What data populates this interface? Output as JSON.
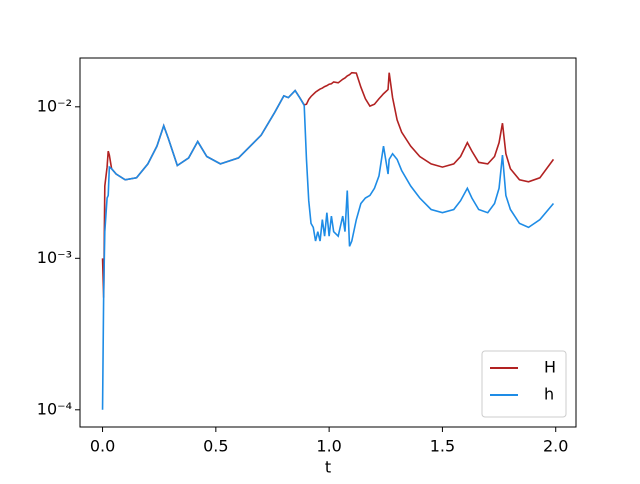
{
  "chart_data": {
    "type": "line",
    "xlabel": "t",
    "x": [
      0,
      0.005,
      0.01,
      0.02,
      0.025,
      0.03,
      0.04,
      0.06,
      0.1,
      0.15,
      0.2,
      0.24,
      0.27,
      0.29,
      0.33,
      0.38,
      0.42,
      0.46,
      0.52,
      0.6,
      0.7,
      0.76,
      0.8,
      0.82,
      0.85,
      0.87,
      0.89,
      0.9,
      0.91,
      0.92,
      0.93,
      0.94,
      0.95,
      0.96,
      0.97,
      0.98,
      0.99,
      1.0,
      1.01,
      1.02,
      1.04,
      1.06,
      1.07,
      1.08,
      1.09,
      1.1,
      1.12,
      1.14,
      1.16,
      1.18,
      1.2,
      1.22,
      1.24,
      1.26,
      1.265,
      1.28,
      1.3,
      1.32,
      1.36,
      1.4,
      1.45,
      1.5,
      1.55,
      1.58,
      1.61,
      1.63,
      1.66,
      1.7,
      1.73,
      1.75,
      1.765,
      1.78,
      1.8,
      1.84,
      1.88,
      1.93,
      1.99
    ],
    "series": [
      {
        "name": "H",
        "color": "#b22222",
        "values": [
          0.001,
          0.00055,
          0.003,
          0.004,
          0.0051,
          0.0048,
          0.0039,
          0.0036,
          0.0033,
          0.0034,
          0.0042,
          0.0055,
          0.0075,
          0.0062,
          0.0041,
          0.0046,
          0.0059,
          0.0047,
          0.0042,
          0.0046,
          0.0065,
          0.0092,
          0.0118,
          0.0115,
          0.0128,
          0.0115,
          0.0103,
          0.0104,
          0.0112,
          0.0117,
          0.0121,
          0.0125,
          0.0128,
          0.0131,
          0.0133,
          0.0136,
          0.0138,
          0.0141,
          0.0142,
          0.0146,
          0.0144,
          0.0152,
          0.0155,
          0.016,
          0.0163,
          0.0168,
          0.0167,
          0.0135,
          0.0113,
          0.0101,
          0.0104,
          0.0113,
          0.0122,
          0.013,
          0.0168,
          0.0115,
          0.0082,
          0.0068,
          0.0055,
          0.0047,
          0.0042,
          0.004,
          0.0042,
          0.0047,
          0.0058,
          0.0051,
          0.0043,
          0.0042,
          0.0047,
          0.0058,
          0.0078,
          0.0049,
          0.0039,
          0.0033,
          0.0032,
          0.0034,
          0.0045
        ]
      },
      {
        "name": "h",
        "color": "#1e8ce6",
        "values": [
          0.0001,
          0.0006,
          0.0015,
          0.0025,
          0.0026,
          0.004,
          0.0039,
          0.0036,
          0.0033,
          0.0034,
          0.0042,
          0.0055,
          0.0075,
          0.0062,
          0.0041,
          0.0046,
          0.0059,
          0.0047,
          0.0042,
          0.0046,
          0.0065,
          0.0092,
          0.0118,
          0.0115,
          0.0128,
          0.0115,
          0.0102,
          0.0045,
          0.0024,
          0.0017,
          0.0016,
          0.0013,
          0.0015,
          0.0013,
          0.0018,
          0.0014,
          0.002,
          0.0014,
          0.0019,
          0.0015,
          0.0014,
          0.0019,
          0.0015,
          0.0028,
          0.0012,
          0.0013,
          0.0018,
          0.0023,
          0.0025,
          0.0026,
          0.0029,
          0.0035,
          0.0055,
          0.0036,
          0.0045,
          0.0049,
          0.0045,
          0.0038,
          0.003,
          0.0025,
          0.0021,
          0.002,
          0.0021,
          0.0024,
          0.0029,
          0.0025,
          0.0021,
          0.002,
          0.0023,
          0.0029,
          0.0048,
          0.0026,
          0.0021,
          0.0017,
          0.0016,
          0.0018,
          0.0023
        ]
      }
    ],
    "xlim": [
      -0.0995,
      2.0895
    ],
    "xticks": [
      {
        "value": 0,
        "label": "0.0"
      },
      0.5,
      {
        "value": 1,
        "label": "1.0"
      },
      1.5,
      {
        "value": 2,
        "label": "2.0"
      }
    ],
    "ylim": [
      7.7e-05,
      0.021
    ],
    "log_y": true,
    "yticks": [
      {
        "value": 0.0001,
        "label": "10⁻⁴"
      },
      {
        "value": 0.001,
        "label": "10⁻³"
      },
      {
        "value": 0.01,
        "label": "10⁻²"
      }
    ],
    "legend": "lower right"
  }
}
